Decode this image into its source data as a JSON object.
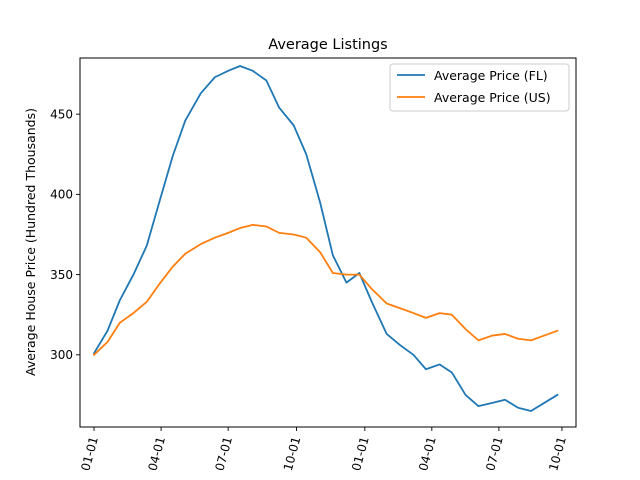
{
  "chart_data": {
    "type": "line",
    "title": "Average Listings",
    "xlabel": "",
    "ylabel": "Average House Price (Hundred Thousands)",
    "xlim": [
      -0.03,
      1.03
    ],
    "ylim": [
      255,
      485
    ],
    "x_ticks": [
      {
        "label": "01-01",
        "x": 0.0
      },
      {
        "label": "04-01",
        "x": 0.1433
      },
      {
        "label": "07-01",
        "x": 0.2866
      },
      {
        "label": "10-01",
        "x": 0.4327
      },
      {
        "label": "01-01",
        "x": 0.5787
      },
      {
        "label": "04-01",
        "x": 0.7219
      },
      {
        "label": "07-01",
        "x": 0.8652
      },
      {
        "label": "10-01",
        "x": 1.0
      }
    ],
    "y_ticks": [
      300,
      350,
      400,
      450
    ],
    "grid": false,
    "legend": "top-right",
    "series": [
      {
        "name": "Average Price (FL)",
        "color": "#1f77b4",
        "x": [
          0.0,
          0.0288,
          0.0551,
          0.0842,
          0.1126,
          0.1393,
          0.1683,
          0.195,
          0.2281,
          0.2581,
          0.2867,
          0.312,
          0.3393,
          0.3683,
          0.3957,
          0.4267,
          0.4535,
          0.4831,
          0.5104,
          0.5394,
          0.567,
          0.5936,
          0.6254,
          0.6542,
          0.6826,
          0.7093,
          0.7384,
          0.7646,
          0.794,
          0.8216,
          0.8512,
          0.8782,
          0.9062,
          0.9338,
          0.962,
          0.9902
        ],
        "y": [
          301,
          315,
          334,
          350,
          368,
          395,
          424,
          446,
          463,
          473,
          477,
          480,
          477,
          471,
          454,
          443,
          425,
          395,
          362,
          345,
          351,
          333,
          313,
          306,
          300,
          291,
          294,
          289,
          275,
          268,
          270,
          272,
          267,
          265,
          270,
          275
        ]
      },
      {
        "name": "Average Price (US)",
        "color": "#ff7f0e",
        "x": [
          0.0,
          0.0288,
          0.0551,
          0.0842,
          0.1126,
          0.1393,
          0.1683,
          0.195,
          0.2281,
          0.2581,
          0.2867,
          0.312,
          0.3393,
          0.3683,
          0.3957,
          0.4267,
          0.4535,
          0.4831,
          0.5104,
          0.5394,
          0.567,
          0.5936,
          0.6254,
          0.6542,
          0.6826,
          0.7093,
          0.7384,
          0.7646,
          0.794,
          0.8216,
          0.8512,
          0.8782,
          0.9062,
          0.9338,
          0.962,
          0.9902
        ],
        "y": [
          300,
          308,
          320,
          326,
          333,
          344,
          355,
          363,
          369,
          373,
          376,
          379,
          381,
          380,
          376,
          375,
          373,
          364,
          351,
          350,
          350,
          341,
          332,
          329,
          326,
          323,
          326,
          325,
          316,
          309,
          312,
          313,
          310,
          309,
          312,
          315
        ]
      }
    ]
  }
}
